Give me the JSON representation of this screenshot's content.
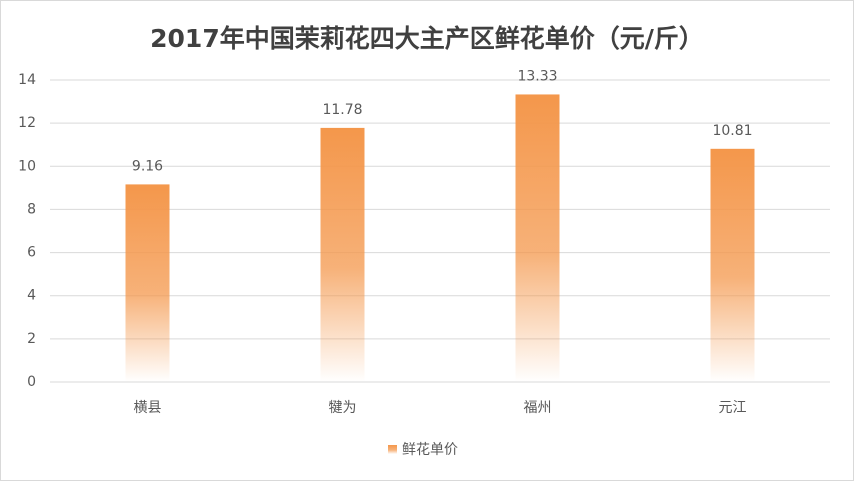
{
  "chart_data": {
    "type": "bar",
    "title": "2017年中国茉莉花四大主产区鲜花单价（元/斤）",
    "categories": [
      "横县",
      "犍为",
      "福州",
      "元江"
    ],
    "series": [
      {
        "name": "鲜花单价",
        "color": "#f4974b",
        "values": [
          9.16,
          11.78,
          13.33,
          10.81
        ]
      }
    ],
    "ylim": [
      0,
      14
    ],
    "yticks": [
      0,
      2,
      4,
      6,
      8,
      10,
      12,
      14
    ],
    "grid": true,
    "legend": "bottom"
  }
}
